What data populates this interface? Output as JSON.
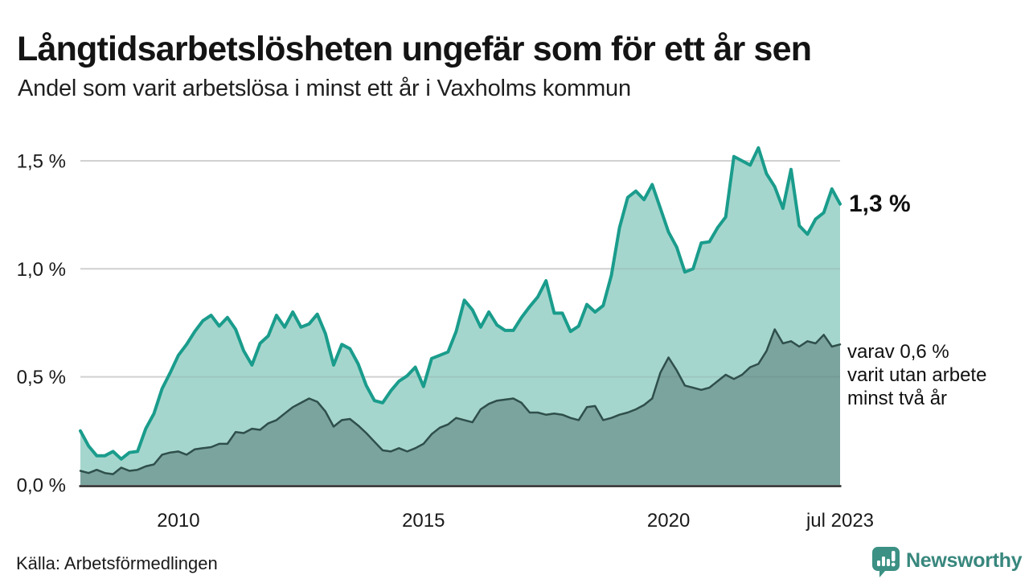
{
  "header": {
    "title": "Långtidsarbetslösheten ungefär som för ett år sen",
    "subtitle": "Andel som varit arbetslösa i minst ett år i Vaxholms kommun"
  },
  "footer": {
    "source": "Källa: Arbetsförmedlingen",
    "logo_text": "Newsworthy",
    "logo_color": "#38877d"
  },
  "chart_data": {
    "type": "area",
    "title": "Långtidsarbetslösheten ungefär som för ett år sen",
    "subtitle": "Andel som varit arbetslösa i minst ett år i Vaxholms kommun",
    "unit": "%",
    "x_start": "2008-01",
    "x_end": "2023-07",
    "total_months": 186,
    "sample_interval_months": 2,
    "grid": "horizontal",
    "ylim": [
      0,
      1.6
    ],
    "colors": {
      "series1_line": "#1a9c8c",
      "series1_fill": "#a5d6cd",
      "series2_line": "#2f4f4b",
      "series2_fill": "#7ba49f",
      "gridline": "#e2e2e2",
      "baseline": "#262626",
      "tick_text": "#1a1a1a"
    },
    "y_ticks": [
      {
        "label": "0,0 %",
        "value": 0.0
      },
      {
        "label": "0,5 %",
        "value": 0.5
      },
      {
        "label": "1,0 %",
        "value": 1.0
      },
      {
        "label": "1,5 %",
        "value": 1.5
      }
    ],
    "x_ticks": [
      {
        "label": "2010",
        "month_index": 24
      },
      {
        "label": "2015",
        "month_index": 84
      },
      {
        "label": "2020",
        "month_index": 144
      },
      {
        "label": "jul 2023",
        "month_index": 186
      }
    ],
    "series": [
      {
        "name": "Andel arbetslösa minst ett år",
        "line_color": "#1a9c8c",
        "fill_color": "#a5d6cd",
        "line_width": 4,
        "values": [
          0.25,
          0.18,
          0.135,
          0.135,
          0.155,
          0.12,
          0.15,
          0.155,
          0.26,
          0.33,
          0.445,
          0.52,
          0.6,
          0.65,
          0.71,
          0.76,
          0.785,
          0.735,
          0.775,
          0.72,
          0.62,
          0.555,
          0.655,
          0.69,
          0.785,
          0.73,
          0.8,
          0.73,
          0.745,
          0.79,
          0.7,
          0.555,
          0.65,
          0.63,
          0.56,
          0.46,
          0.39,
          0.38,
          0.435,
          0.48,
          0.505,
          0.545,
          0.455,
          0.585,
          0.6,
          0.615,
          0.71,
          0.855,
          0.81,
          0.73,
          0.8,
          0.74,
          0.715,
          0.715,
          0.775,
          0.825,
          0.87,
          0.945,
          0.795,
          0.795,
          0.71,
          0.735,
          0.835,
          0.8,
          0.83,
          0.97,
          1.19,
          1.33,
          1.36,
          1.32,
          1.39,
          1.28,
          1.17,
          1.1,
          0.985,
          1.0,
          1.12,
          1.125,
          1.19,
          1.24,
          1.52,
          1.5,
          1.48,
          1.56,
          1.44,
          1.38,
          1.28,
          1.46,
          1.2,
          1.16,
          1.23,
          1.26,
          1.37,
          1.3
        ]
      },
      {
        "name": "varav utan arbete minst två år",
        "line_color": "#2f4f4b",
        "fill_color": "#7ba49f",
        "line_width": 2.5,
        "values": [
          0.065,
          0.055,
          0.07,
          0.055,
          0.05,
          0.08,
          0.065,
          0.07,
          0.086,
          0.095,
          0.14,
          0.15,
          0.155,
          0.14,
          0.165,
          0.17,
          0.175,
          0.19,
          0.19,
          0.245,
          0.24,
          0.26,
          0.255,
          0.285,
          0.3,
          0.33,
          0.36,
          0.38,
          0.4,
          0.385,
          0.34,
          0.27,
          0.3,
          0.305,
          0.275,
          0.24,
          0.2,
          0.16,
          0.155,
          0.17,
          0.155,
          0.17,
          0.19,
          0.235,
          0.265,
          0.28,
          0.31,
          0.3,
          0.29,
          0.35,
          0.375,
          0.39,
          0.395,
          0.4,
          0.38,
          0.335,
          0.335,
          0.325,
          0.33,
          0.325,
          0.31,
          0.3,
          0.36,
          0.365,
          0.3,
          0.31,
          0.325,
          0.335,
          0.35,
          0.37,
          0.4,
          0.52,
          0.59,
          0.53,
          0.46,
          0.45,
          0.44,
          0.45,
          0.48,
          0.51,
          0.49,
          0.51,
          0.545,
          0.56,
          0.62,
          0.72,
          0.655,
          0.665,
          0.64,
          0.665,
          0.655,
          0.695,
          0.64,
          0.65
        ]
      }
    ],
    "annotations": [
      {
        "id": "latest-value",
        "text": "1,3 %",
        "bold": true
      },
      {
        "id": "two-year-share",
        "lines": [
          "varav 0,6 %",
          "varit utan arbete",
          "minst två år"
        ]
      }
    ]
  }
}
